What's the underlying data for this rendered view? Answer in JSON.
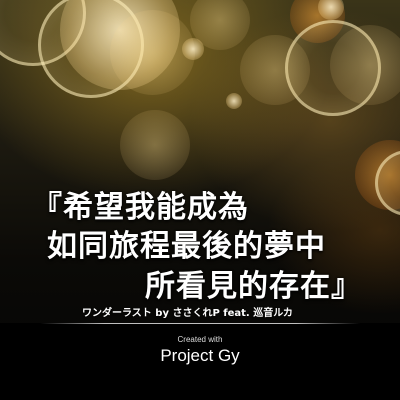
{
  "lyrics": {
    "line1": "『希望我能成為",
    "line2": "如同旅程最後的夢中",
    "line3": "所看見的存在』"
  },
  "credit": "ワンダーラスト by ささくれP feat. 巡音ルカ",
  "footer": {
    "created_with": "Created with",
    "brand": "Project Gy"
  },
  "colors": {
    "text": "#ffffff",
    "footer_background": "#000000",
    "bokeh_highlight": "#fff0be",
    "background_warm": "#3a3418"
  }
}
